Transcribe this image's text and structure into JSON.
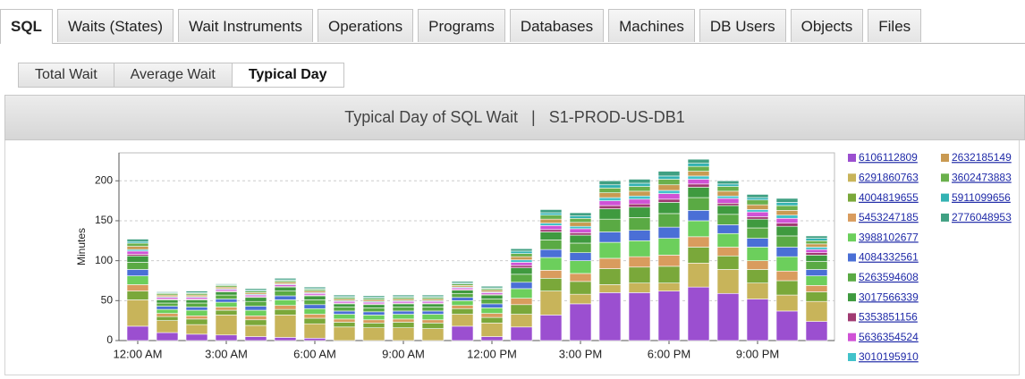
{
  "tabs": [
    "SQL",
    "Waits (States)",
    "Wait Instruments",
    "Operations",
    "Programs",
    "Databases",
    "Machines",
    "DB Users",
    "Objects",
    "Files"
  ],
  "active_tab": 0,
  "subtabs": [
    "Total Wait",
    "Average Wait",
    "Typical Day"
  ],
  "active_subtab": 2,
  "chart_data": {
    "type": "stacked_bar",
    "title": "Typical Day of SQL Wait   |   S1-PROD-US-DB1",
    "y_label": "Minutes",
    "categories": [
      "12:00 AM",
      null,
      null,
      "3:00 AM",
      null,
      null,
      "6:00 AM",
      null,
      null,
      "9:00 AM",
      null,
      null,
      "12:00 PM",
      null,
      null,
      "3:00 PM",
      null,
      null,
      "6:00 PM",
      null,
      null,
      "9:00 PM",
      null,
      null
    ],
    "ylim": [
      0,
      235
    ],
    "yticks": [
      0,
      50,
      100,
      150,
      200
    ],
    "grid": true,
    "series": [
      {
        "name": "6106112809",
        "color": "#9b4fd0",
        "values": [
          18,
          10,
          8,
          7,
          5,
          4,
          3,
          0,
          0,
          0,
          0,
          18,
          5,
          17,
          32,
          46,
          60,
          60,
          62,
          67,
          59,
          52,
          37,
          24
        ]
      },
      {
        "name": "6291860763",
        "color": "#c8b45a",
        "values": [
          33,
          15,
          12,
          25,
          14,
          28,
          18,
          17,
          16,
          16,
          15,
          15,
          17,
          16,
          30,
          12,
          10,
          12,
          10,
          30,
          30,
          20,
          20,
          25
        ]
      },
      {
        "name": "4004819655",
        "color": "#7aa83a",
        "values": [
          11,
          5,
          7,
          6,
          7,
          7,
          7,
          6,
          6,
          7,
          7,
          7,
          7,
          12,
          16,
          16,
          20,
          20,
          21,
          20,
          17,
          17,
          18,
          12
        ]
      },
      {
        "name": "5453247185",
        "color": "#d99c5e",
        "values": [
          8,
          4,
          4,
          4,
          5,
          5,
          5,
          4,
          4,
          4,
          4,
          4,
          5,
          8,
          10,
          10,
          13,
          13,
          14,
          13,
          11,
          11,
          12,
          8
        ]
      },
      {
        "name": "3988102677",
        "color": "#6ccf5c",
        "values": [
          11,
          5,
          7,
          6,
          7,
          7,
          7,
          6,
          6,
          6,
          7,
          6,
          7,
          12,
          16,
          16,
          20,
          20,
          21,
          20,
          17,
          17,
          18,
          12
        ]
      },
      {
        "name": "4084332561",
        "color": "#4a6fd6",
        "values": [
          8,
          4,
          4,
          4,
          5,
          5,
          5,
          4,
          4,
          4,
          4,
          4,
          5,
          8,
          10,
          10,
          13,
          13,
          14,
          13,
          11,
          11,
          12,
          8
        ]
      },
      {
        "name": "5263594608",
        "color": "#5aaa44",
        "values": [
          9,
          4,
          5,
          5,
          6,
          6,
          6,
          5,
          5,
          5,
          5,
          5,
          6,
          10,
          12,
          12,
          16,
          16,
          17,
          16,
          13,
          13,
          14,
          10
        ]
      },
      {
        "name": "3017566339",
        "color": "#3f9a3f",
        "values": [
          8,
          4,
          4,
          4,
          5,
          5,
          5,
          4,
          4,
          4,
          4,
          4,
          5,
          8,
          10,
          10,
          13,
          13,
          14,
          13,
          11,
          11,
          12,
          8
        ]
      },
      {
        "name": "5353851156",
        "color": "#a03a72",
        "values": [
          2,
          1,
          1,
          1,
          1,
          1,
          1,
          1,
          1,
          1,
          1,
          1,
          1,
          3,
          3,
          3,
          4,
          4,
          4,
          4,
          3,
          3,
          4,
          3
        ]
      },
      {
        "name": "5636354524",
        "color": "#d052d6",
        "values": [
          4,
          2,
          2,
          2,
          2,
          2,
          2,
          2,
          2,
          2,
          2,
          2,
          2,
          4,
          5,
          5,
          6,
          6,
          7,
          6,
          6,
          6,
          6,
          4
        ]
      },
      {
        "name": "3010195910",
        "color": "#42c2ca",
        "values": [
          2,
          1,
          1,
          1,
          1,
          1,
          1,
          1,
          1,
          1,
          1,
          1,
          1,
          3,
          3,
          3,
          4,
          4,
          4,
          4,
          3,
          3,
          4,
          3
        ]
      },
      {
        "name": "2632185149",
        "color": "#c99a52",
        "values": [
          4,
          2,
          2,
          2,
          2,
          2,
          2,
          2,
          2,
          2,
          2,
          2,
          2,
          4,
          5,
          5,
          6,
          6,
          7,
          6,
          6,
          6,
          6,
          4
        ]
      },
      {
        "name": "3602473883",
        "color": "#6ab04c",
        "values": [
          4,
          2,
          2,
          2,
          2,
          2,
          2,
          2,
          2,
          2,
          2,
          2,
          2,
          4,
          5,
          5,
          6,
          6,
          7,
          6,
          6,
          6,
          6,
          4
        ]
      },
      {
        "name": "5911099656",
        "color": "#33b2b2",
        "values": [
          2,
          1,
          1,
          1,
          1,
          1,
          1,
          1,
          1,
          1,
          1,
          1,
          1,
          3,
          3,
          3,
          4,
          4,
          4,
          4,
          3,
          3,
          4,
          3
        ]
      },
      {
        "name": "2776048953",
        "color": "#40a082",
        "values": [
          3,
          1,
          2,
          1,
          2,
          2,
          2,
          2,
          2,
          2,
          2,
          2,
          2,
          3,
          4,
          4,
          5,
          5,
          6,
          5,
          4,
          4,
          5,
          3
        ]
      }
    ]
  }
}
